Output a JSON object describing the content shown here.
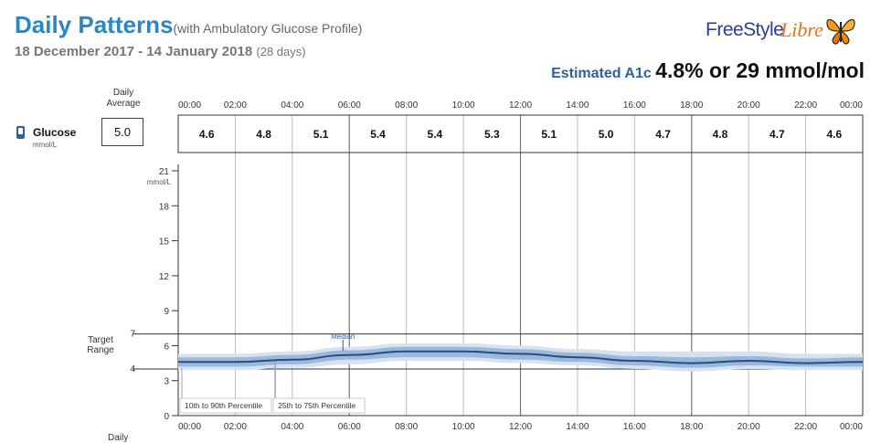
{
  "header": {
    "title": "Daily Patterns",
    "subtitle": "(with Ambulatory Glucose Profile)",
    "date_range": "18 December 2017 - 14 January 2018",
    "days": "(28 days)",
    "logo_part1": "FreeStyle",
    "logo_part2": "Libre",
    "a1c_label": "Estimated A1c",
    "a1c_value": "4.8% or 29 mmol/mol"
  },
  "glucose_row": {
    "daily_average_label_1": "Daily",
    "daily_average_label_2": "Average",
    "label": "Glucose",
    "unit": "mmol/L",
    "daily_average": "5.0"
  },
  "chart_data": {
    "type": "area",
    "x_ticks": [
      "00:00",
      "02:00",
      "04:00",
      "06:00",
      "08:00",
      "10:00",
      "12:00",
      "14:00",
      "16:00",
      "18:00",
      "20:00",
      "22:00",
      "00:00"
    ],
    "hourly_averages": [
      "4.6",
      "4.8",
      "5.1",
      "5.4",
      "5.4",
      "5.3",
      "5.1",
      "5.0",
      "4.7",
      "4.8",
      "4.7",
      "4.6"
    ],
    "y_ticks": [
      0,
      3,
      6,
      9,
      12,
      15,
      18,
      21
    ],
    "y_unit": "mmol/L",
    "ylim": [
      0,
      21
    ],
    "target_range": {
      "label_1": "Target",
      "label_2": "Range",
      "low": 4,
      "high": 7,
      "low_label": "4",
      "high_label": "7"
    },
    "x_hours": [
      0,
      2,
      4,
      6,
      8,
      10,
      12,
      14,
      16,
      18,
      20,
      22,
      24
    ],
    "median": [
      4.6,
      4.6,
      4.8,
      5.2,
      5.5,
      5.5,
      5.3,
      5.0,
      4.7,
      4.5,
      4.7,
      4.5,
      4.6
    ],
    "p25": [
      4.2,
      4.2,
      4.4,
      4.8,
      5.0,
      5.0,
      4.8,
      4.6,
      4.3,
      4.1,
      4.3,
      4.2,
      4.2
    ],
    "p75": [
      5.0,
      5.0,
      5.2,
      5.6,
      5.9,
      5.9,
      5.7,
      5.4,
      5.1,
      5.0,
      5.1,
      4.9,
      5.0
    ],
    "p10": [
      3.9,
      3.9,
      4.1,
      4.4,
      4.7,
      4.7,
      4.5,
      4.3,
      4.0,
      3.8,
      4.0,
      3.9,
      3.9
    ],
    "p90": [
      5.3,
      5.3,
      5.5,
      5.9,
      6.2,
      6.2,
      6.0,
      5.7,
      5.5,
      5.5,
      5.5,
      5.3,
      5.3
    ],
    "annotations": {
      "median": "Median",
      "p10_90": "10th to 90th Percentile",
      "p25_75": "25th to 75th Percentile"
    },
    "colors": {
      "median": "#1f4f8f",
      "band_inner": "#9db8d9",
      "band_outer": "#d6e2f0",
      "grid": "#999999"
    }
  },
  "footer": {
    "daily_label": "Daily"
  }
}
